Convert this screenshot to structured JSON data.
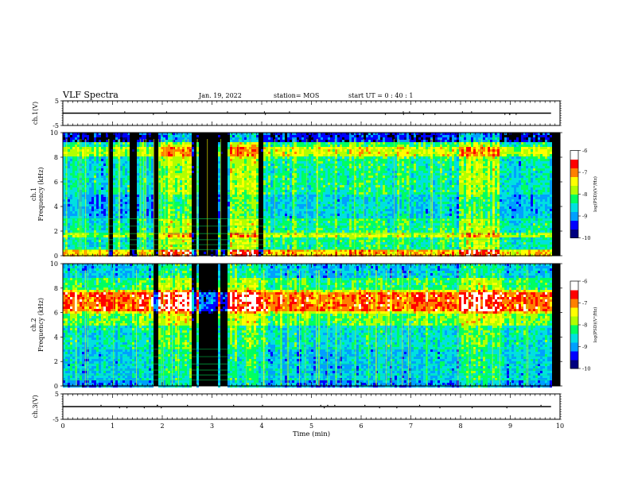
{
  "header": {
    "title": "VLF Spectra",
    "date": "Jan. 19, 2022",
    "station": "station= MOS",
    "start": "start  UT  =   0 : 40 : 1"
  },
  "chart_data": [
    {
      "type": "line",
      "id": "ch1-voltage",
      "ylabel": "ch.1(V)",
      "ylim": [
        -5,
        5
      ],
      "yticks": [
        "5",
        "-5"
      ],
      "xlim": [
        0,
        10
      ],
      "series": [
        {
          "x": [
            0,
            9.82
          ],
          "values": [
            0,
            0
          ]
        }
      ]
    },
    {
      "type": "heatmap",
      "id": "ch1-spectrogram",
      "ylabel": "ch.1\nFrequency (kHz)",
      "ylim": [
        0,
        10
      ],
      "yticks": [
        "0",
        "2",
        "4",
        "6",
        "8",
        "10"
      ],
      "xlim": [
        0,
        10
      ],
      "data_end_min": 9.82,
      "colorbar": {
        "label": "log(PSD)(V²/Hz)",
        "range": [
          -10,
          -6
        ],
        "ticks": [
          "-6",
          "-7",
          "-8",
          "-9",
          "-10"
        ],
        "colors": [
          "#000080",
          "#0000ff",
          "#00a0ff",
          "#00e0e0",
          "#00ff60",
          "#b0ff00",
          "#ffff00",
          "#ff8000",
          "#ff0000",
          "#ffffff"
        ]
      },
      "intense_bands_kHz": [
        [
          8.2,
          8.9
        ],
        [
          1.6,
          2.0
        ]
      ],
      "quiet_gaps_min": [
        [
          0.9,
          1.0
        ],
        [
          1.32,
          1.48
        ],
        [
          1.8,
          1.88
        ],
        [
          2.55,
          2.68
        ],
        [
          2.72,
          3.1
        ],
        [
          3.15,
          3.28
        ],
        [
          3.9,
          4.0
        ]
      ]
    },
    {
      "type": "heatmap",
      "id": "ch2-spectrogram",
      "ylabel": "ch.2\nFrequency (kHz)",
      "ylim": [
        0,
        10
      ],
      "yticks": [
        "0",
        "2",
        "4",
        "6",
        "8",
        "10"
      ],
      "xlim": [
        0,
        10
      ],
      "data_end_min": 9.82,
      "colorbar": {
        "label": "log(PSD)(V²/Hz)",
        "range": [
          -10,
          -6
        ],
        "ticks": [
          "-6",
          "-7",
          "-8",
          "-9",
          "-10"
        ],
        "colors": [
          "#000080",
          "#0000ff",
          "#00a0ff",
          "#00e0e0",
          "#00ff60",
          "#b0ff00",
          "#ffff00",
          "#ff8000",
          "#ff0000",
          "#ffffff"
        ]
      },
      "intense_bands_kHz": [
        [
          6.2,
          7.8
        ]
      ],
      "quiet_gaps_min": [
        [
          1.8,
          1.88
        ],
        [
          2.55,
          2.68
        ],
        [
          2.72,
          3.1
        ],
        [
          3.15,
          3.28
        ]
      ]
    },
    {
      "type": "line",
      "id": "ch3-voltage",
      "ylabel": "ch.3(V)",
      "ylim": [
        -5,
        5
      ],
      "yticks": [
        "5",
        "-5"
      ],
      "xlim": [
        0,
        10
      ],
      "xlabel": "Time (min)",
      "xticks": [
        "0",
        "1",
        "2",
        "3",
        "4",
        "5",
        "6",
        "7",
        "8",
        "9",
        "10"
      ],
      "series": [
        {
          "x": [
            0,
            9.82
          ],
          "values": [
            0,
            0
          ]
        }
      ]
    }
  ]
}
